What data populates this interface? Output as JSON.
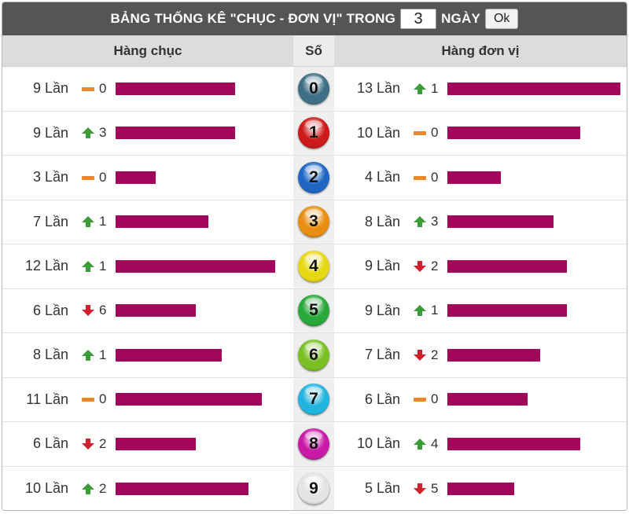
{
  "header": {
    "title_prefix": "BẢNG THỐNG KÊ \"CHỤC - ĐƠN VỊ\" TRONG",
    "days_value": "3",
    "title_suffix": "NGÀY",
    "ok_label": "Ok"
  },
  "columns": {
    "tens": "Hàng chục",
    "number": "Số",
    "units": "Hàng đơn vị"
  },
  "colors": {
    "bar": "#a0075a",
    "up": "#3a9d3a",
    "down": "#d0202a",
    "same": "#f0862a"
  },
  "rows": [
    {
      "digit": "0",
      "ball_color": "#3f6f86",
      "tens": {
        "count": "9 Lần",
        "trend": "same",
        "change": "0",
        "value": 9
      },
      "units": {
        "count": "13 Lần",
        "trend": "up",
        "change": "1",
        "value": 13
      }
    },
    {
      "digit": "1",
      "ball_color": "#cc1a1a",
      "tens": {
        "count": "9 Lần",
        "trend": "up",
        "change": "3",
        "value": 9
      },
      "units": {
        "count": "10 Lần",
        "trend": "same",
        "change": "0",
        "value": 10
      }
    },
    {
      "digit": "2",
      "ball_color": "#1f66c2",
      "tens": {
        "count": "3 Lần",
        "trend": "same",
        "change": "0",
        "value": 3
      },
      "units": {
        "count": "4 Lần",
        "trend": "same",
        "change": "0",
        "value": 4
      }
    },
    {
      "digit": "3",
      "ball_color": "#e88e12",
      "tens": {
        "count": "7 Lần",
        "trend": "up",
        "change": "1",
        "value": 7
      },
      "units": {
        "count": "8 Lần",
        "trend": "up",
        "change": "3",
        "value": 8
      }
    },
    {
      "digit": "4",
      "ball_color": "#e6d812",
      "tens": {
        "count": "12 Lần",
        "trend": "up",
        "change": "1",
        "value": 12
      },
      "units": {
        "count": "9 Lần",
        "trend": "down",
        "change": "2",
        "value": 9
      }
    },
    {
      "digit": "5",
      "ball_color": "#2aa83a",
      "tens": {
        "count": "6 Lần",
        "trend": "down",
        "change": "6",
        "value": 6
      },
      "units": {
        "count": "9 Lần",
        "trend": "up",
        "change": "1",
        "value": 9
      }
    },
    {
      "digit": "6",
      "ball_color": "#7ac024",
      "tens": {
        "count": "8 Lần",
        "trend": "up",
        "change": "1",
        "value": 8
      },
      "units": {
        "count": "7 Lần",
        "trend": "down",
        "change": "2",
        "value": 7
      }
    },
    {
      "digit": "7",
      "ball_color": "#22b4de",
      "tens": {
        "count": "11 Lần",
        "trend": "same",
        "change": "0",
        "value": 11
      },
      "units": {
        "count": "6 Lần",
        "trend": "same",
        "change": "0",
        "value": 6
      }
    },
    {
      "digit": "8",
      "ball_color": "#c81aa6",
      "tens": {
        "count": "6 Lần",
        "trend": "down",
        "change": "2",
        "value": 6
      },
      "units": {
        "count": "10 Lần",
        "trend": "up",
        "change": "4",
        "value": 10
      }
    },
    {
      "digit": "9",
      "ball_color": "#e4e4e4",
      "tens": {
        "count": "10 Lần",
        "trend": "up",
        "change": "2",
        "value": 10
      },
      "units": {
        "count": "5 Lần",
        "trend": "down",
        "change": "5",
        "value": 5
      }
    }
  ]
}
